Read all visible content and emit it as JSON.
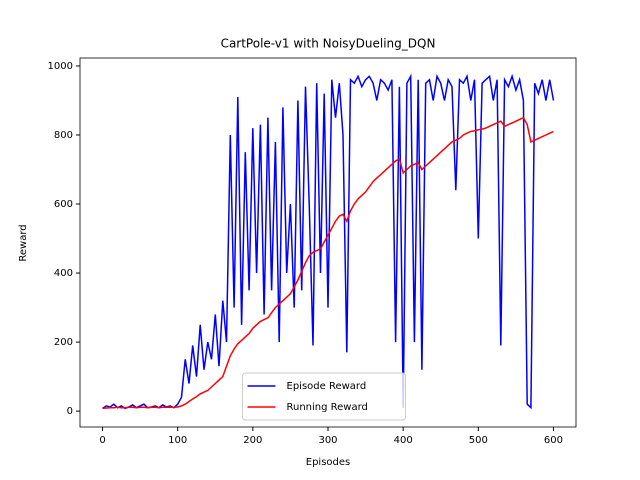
{
  "chart_data": {
    "type": "line",
    "title": "CartPole-v1 with NoisyDueling_DQN",
    "x_label": "Episodes",
    "y_label": "Reward",
    "x": [
      0,
      5,
      10,
      15,
      20,
      25,
      30,
      35,
      40,
      45,
      50,
      55,
      60,
      65,
      70,
      75,
      80,
      85,
      90,
      95,
      100,
      105,
      110,
      115,
      120,
      125,
      130,
      135,
      140,
      145,
      150,
      155,
      160,
      165,
      170,
      175,
      180,
      185,
      190,
      195,
      200,
      205,
      210,
      215,
      220,
      225,
      230,
      235,
      240,
      245,
      250,
      255,
      260,
      265,
      270,
      275,
      280,
      285,
      290,
      295,
      300,
      305,
      310,
      315,
      320,
      325,
      330,
      335,
      340,
      345,
      350,
      355,
      360,
      365,
      370,
      375,
      380,
      385,
      390,
      395,
      400,
      405,
      410,
      415,
      420,
      425,
      430,
      435,
      440,
      445,
      450,
      455,
      460,
      465,
      470,
      475,
      480,
      485,
      490,
      495,
      500,
      505,
      510,
      515,
      520,
      525,
      530,
      535,
      540,
      545,
      550,
      555,
      560,
      565,
      570,
      575,
      580,
      585,
      590,
      595,
      600
    ],
    "series": [
      {
        "name": "Episode Reward",
        "color": "#0000ff",
        "values": [
          8,
          15,
          12,
          20,
          10,
          15,
          8,
          12,
          18,
          10,
          15,
          20,
          10,
          12,
          15,
          10,
          18,
          12,
          15,
          10,
          20,
          40,
          150,
          80,
          190,
          100,
          250,
          120,
          200,
          150,
          280,
          130,
          320,
          200,
          800,
          300,
          910,
          250,
          750,
          350,
          820,
          400,
          830,
          280,
          850,
          350,
          780,
          200,
          880,
          400,
          600,
          300,
          900,
          350,
          940,
          600,
          190,
          950,
          400,
          920,
          300,
          960,
          850,
          950,
          800,
          170,
          960,
          950,
          970,
          940,
          960,
          970,
          950,
          900,
          960,
          950,
          930,
          960,
          200,
          940,
          10,
          950,
          970,
          200,
          960,
          120,
          950,
          960,
          900,
          970,
          950,
          900,
          960,
          940,
          640,
          960,
          950,
          970,
          900,
          960,
          500,
          950,
          960,
          970,
          900,
          960,
          190,
          960,
          940,
          970,
          930,
          960,
          900,
          20,
          10,
          950,
          920,
          960,
          900,
          960,
          900
        ]
      },
      {
        "name": "Running Reward",
        "color": "#ff0000",
        "values": [
          8,
          9,
          10,
          10,
          11,
          10,
          10,
          11,
          11,
          10,
          11,
          11,
          10,
          11,
          11,
          10,
          11,
          11,
          11,
          11,
          12,
          15,
          20,
          28,
          35,
          42,
          50,
          55,
          60,
          70,
          80,
          90,
          100,
          130,
          160,
          180,
          195,
          205,
          215,
          225,
          240,
          250,
          260,
          265,
          270,
          285,
          300,
          310,
          320,
          330,
          340,
          360,
          380,
          405,
          430,
          450,
          460,
          465,
          470,
          490,
          510,
          530,
          550,
          565,
          570,
          550,
          580,
          600,
          615,
          625,
          635,
          650,
          665,
          675,
          685,
          695,
          705,
          715,
          725,
          730,
          690,
          700,
          710,
          715,
          720,
          700,
          710,
          720,
          730,
          740,
          750,
          760,
          770,
          780,
          785,
          790,
          800,
          805,
          810,
          812,
          815,
          817,
          820,
          825,
          830,
          835,
          840,
          825,
          830,
          835,
          840,
          845,
          850,
          830,
          780,
          785,
          790,
          795,
          800,
          805,
          810
        ]
      }
    ],
    "xlim": [
      -30,
      630
    ],
    "ylim": [
      -46,
      1023
    ],
    "xticks": [
      0,
      100,
      200,
      300,
      400,
      500,
      600
    ],
    "yticks": [
      0,
      200,
      400,
      600,
      800,
      1000
    ],
    "legend": "lower center"
  }
}
